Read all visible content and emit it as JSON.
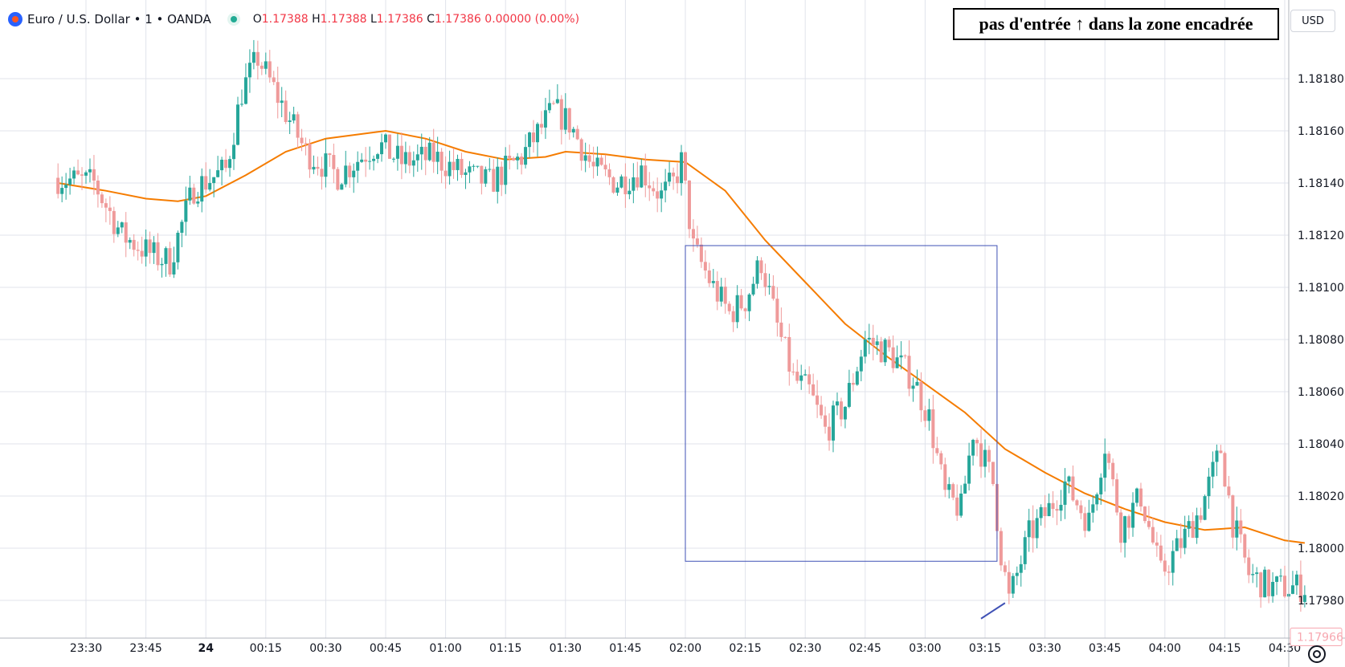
{
  "header": {
    "symbol": "Euro / U.S. Dollar • 1 • OANDA",
    "o_label": "O",
    "o_value": "1.17388",
    "h_label": "H",
    "h_value": "1.17388",
    "l_label": "L",
    "l_value": "1.17386",
    "c_label": "C",
    "c_value": "1.17386",
    "change": "0.00000 (0.00%)"
  },
  "currency_button": "USD",
  "annotation": "pas d'entrée ↑ dans la zone encadrée",
  "colors": {
    "up": "#26a69a",
    "down": "#ef9a9a",
    "ma": "#f57c00",
    "box": "#3f51b5",
    "grid": "#e0e3eb",
    "text": "#131722"
  },
  "chart_data": {
    "type": "candlestick",
    "interval": "1 minute",
    "x_ticks": [
      "23:30",
      "23:45",
      "24",
      "00:15",
      "00:30",
      "00:45",
      "01:00",
      "01:15",
      "01:30",
      "01:45",
      "02:00",
      "02:15",
      "02:30",
      "02:45",
      "03:00",
      "03:15",
      "03:30",
      "03:45",
      "04:00",
      "04:15",
      "04:30"
    ],
    "y_ticks": [
      "1.18180",
      "1.18160",
      "1.18140",
      "1.18120",
      "1.18100",
      "1.18080",
      "1.18060",
      "1.18040",
      "1.18020",
      "1.18000",
      "1.17980"
    ],
    "ylim": [
      1.17966,
      1.18196
    ],
    "last_price": "1.17966",
    "moving_average": {
      "points": [
        [
          "23:23",
          1.1814
        ],
        [
          "23:35",
          1.18137
        ],
        [
          "23:45",
          1.18134
        ],
        [
          "23:53",
          1.18133
        ],
        [
          "00:00",
          1.18135
        ],
        [
          "00:10",
          1.18143
        ],
        [
          "00:20",
          1.18152
        ],
        [
          "00:30",
          1.18157
        ],
        [
          "00:40",
          1.18159
        ],
        [
          "00:45",
          1.1816
        ],
        [
          "00:55",
          1.18157
        ],
        [
          "01:05",
          1.18152
        ],
        [
          "01:15",
          1.18149
        ],
        [
          "01:25",
          1.1815
        ],
        [
          "01:30",
          1.18152
        ],
        [
          "01:40",
          1.18151
        ],
        [
          "01:50",
          1.18149
        ],
        [
          "02:00",
          1.18148
        ],
        [
          "02:10",
          1.18137
        ],
        [
          "02:20",
          1.18118
        ],
        [
          "02:30",
          1.18102
        ],
        [
          "02:40",
          1.18086
        ],
        [
          "02:50",
          1.18074
        ],
        [
          "03:00",
          1.18063
        ],
        [
          "03:10",
          1.18052
        ],
        [
          "03:20",
          1.18038
        ],
        [
          "03:30",
          1.18029
        ],
        [
          "03:40",
          1.18021
        ],
        [
          "03:50",
          1.18015
        ],
        [
          "04:00",
          1.1801
        ],
        [
          "04:10",
          1.18007
        ],
        [
          "04:20",
          1.18008
        ],
        [
          "04:30",
          1.18003
        ],
        [
          "04:35",
          1.18002
        ]
      ]
    },
    "candle_path": [
      [
        "23:23",
        1.18142
      ],
      [
        "23:33",
        1.1814
      ],
      [
        "23:40",
        1.1812
      ],
      [
        "23:48",
        1.18112
      ],
      [
        "23:52",
        1.1811
      ],
      [
        "23:58",
        1.18138
      ],
      [
        "00:06",
        1.18145
      ],
      [
        "00:10",
        1.18175
      ],
      [
        "00:14",
        1.18188
      ],
      [
        "00:20",
        1.1817
      ],
      [
        "00:26",
        1.18152
      ],
      [
        "00:34",
        1.18143
      ],
      [
        "00:44",
        1.18155
      ],
      [
        "00:50",
        1.18148
      ],
      [
        "00:58",
        1.1815
      ],
      [
        "01:06",
        1.18143
      ],
      [
        "01:12",
        1.1814
      ],
      [
        "01:20",
        1.1815
      ],
      [
        "01:28",
        1.18168
      ],
      [
        "01:32",
        1.18163
      ],
      [
        "01:38",
        1.18145
      ],
      [
        "01:44",
        1.1814
      ],
      [
        "01:50",
        1.18145
      ],
      [
        "01:55",
        1.18135
      ],
      [
        "01:58",
        1.1814
      ],
      [
        "02:00",
        1.18148
      ],
      [
        "02:03",
        1.18115
      ],
      [
        "02:08",
        1.181
      ],
      [
        "02:12",
        1.1809
      ],
      [
        "02:16",
        1.18095
      ],
      [
        "02:20",
        1.1811
      ],
      [
        "02:24",
        1.18085
      ],
      [
        "02:28",
        1.18065
      ],
      [
        "02:32",
        1.1806
      ],
      [
        "02:36",
        1.18045
      ],
      [
        "02:41",
        1.18055
      ],
      [
        "02:46",
        1.1808
      ],
      [
        "02:52",
        1.18075
      ],
      [
        "02:58",
        1.18065
      ],
      [
        "03:02",
        1.1805
      ],
      [
        "03:06",
        1.1802
      ],
      [
        "03:10",
        1.18015
      ],
      [
        "03:13",
        1.18045
      ],
      [
        "03:18",
        1.18025
      ],
      [
        "03:20",
        1.17998
      ],
      [
        "03:22",
        1.1798
      ],
      [
        "03:27",
        1.18005
      ],
      [
        "03:32",
        1.18015
      ],
      [
        "03:36",
        1.18025
      ],
      [
        "03:42",
        1.1801
      ],
      [
        "03:46",
        1.1804
      ],
      [
        "03:50",
        1.18008
      ],
      [
        "03:55",
        1.1802
      ],
      [
        "04:00",
        1.1799
      ],
      [
        "04:05",
        1.18002
      ],
      [
        "04:10",
        1.18015
      ],
      [
        "04:15",
        1.18038
      ],
      [
        "04:18",
        1.1801
      ],
      [
        "04:22",
        1.1799
      ],
      [
        "04:27",
        1.17985
      ],
      [
        "04:35",
        1.17985
      ]
    ]
  }
}
